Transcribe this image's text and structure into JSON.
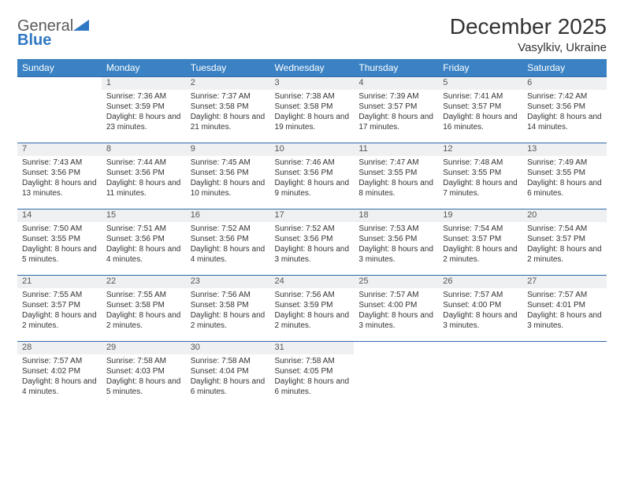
{
  "logo": {
    "line1": "General",
    "line2": "Blue",
    "triangle_color": "#2f78c4"
  },
  "header": {
    "month_title": "December 2025",
    "location": "Vasylkiv, Ukraine"
  },
  "style": {
    "header_bg": "#3b82c4",
    "header_text": "#ffffff",
    "daynum_bg": "#eef0f2",
    "border_color": "#2f6aa8",
    "text_color": "#333333",
    "page_bg": "#ffffff",
    "title_fontsize": 28,
    "location_fontsize": 15,
    "weekday_fontsize": 12,
    "cell_fontsize": 10
  },
  "weekdays": [
    "Sunday",
    "Monday",
    "Tuesday",
    "Wednesday",
    "Thursday",
    "Friday",
    "Saturday"
  ],
  "weeks": [
    [
      null,
      {
        "n": "1",
        "sr": "7:36 AM",
        "ss": "3:59 PM",
        "dl": "8 hours and 23 minutes."
      },
      {
        "n": "2",
        "sr": "7:37 AM",
        "ss": "3:58 PM",
        "dl": "8 hours and 21 minutes."
      },
      {
        "n": "3",
        "sr": "7:38 AM",
        "ss": "3:58 PM",
        "dl": "8 hours and 19 minutes."
      },
      {
        "n": "4",
        "sr": "7:39 AM",
        "ss": "3:57 PM",
        "dl": "8 hours and 17 minutes."
      },
      {
        "n": "5",
        "sr": "7:41 AM",
        "ss": "3:57 PM",
        "dl": "8 hours and 16 minutes."
      },
      {
        "n": "6",
        "sr": "7:42 AM",
        "ss": "3:56 PM",
        "dl": "8 hours and 14 minutes."
      }
    ],
    [
      {
        "n": "7",
        "sr": "7:43 AM",
        "ss": "3:56 PM",
        "dl": "8 hours and 13 minutes."
      },
      {
        "n": "8",
        "sr": "7:44 AM",
        "ss": "3:56 PM",
        "dl": "8 hours and 11 minutes."
      },
      {
        "n": "9",
        "sr": "7:45 AM",
        "ss": "3:56 PM",
        "dl": "8 hours and 10 minutes."
      },
      {
        "n": "10",
        "sr": "7:46 AM",
        "ss": "3:56 PM",
        "dl": "8 hours and 9 minutes."
      },
      {
        "n": "11",
        "sr": "7:47 AM",
        "ss": "3:55 PM",
        "dl": "8 hours and 8 minutes."
      },
      {
        "n": "12",
        "sr": "7:48 AM",
        "ss": "3:55 PM",
        "dl": "8 hours and 7 minutes."
      },
      {
        "n": "13",
        "sr": "7:49 AM",
        "ss": "3:55 PM",
        "dl": "8 hours and 6 minutes."
      }
    ],
    [
      {
        "n": "14",
        "sr": "7:50 AM",
        "ss": "3:55 PM",
        "dl": "8 hours and 5 minutes."
      },
      {
        "n": "15",
        "sr": "7:51 AM",
        "ss": "3:56 PM",
        "dl": "8 hours and 4 minutes."
      },
      {
        "n": "16",
        "sr": "7:52 AM",
        "ss": "3:56 PM",
        "dl": "8 hours and 4 minutes."
      },
      {
        "n": "17",
        "sr": "7:52 AM",
        "ss": "3:56 PM",
        "dl": "8 hours and 3 minutes."
      },
      {
        "n": "18",
        "sr": "7:53 AM",
        "ss": "3:56 PM",
        "dl": "8 hours and 3 minutes."
      },
      {
        "n": "19",
        "sr": "7:54 AM",
        "ss": "3:57 PM",
        "dl": "8 hours and 2 minutes."
      },
      {
        "n": "20",
        "sr": "7:54 AM",
        "ss": "3:57 PM",
        "dl": "8 hours and 2 minutes."
      }
    ],
    [
      {
        "n": "21",
        "sr": "7:55 AM",
        "ss": "3:57 PM",
        "dl": "8 hours and 2 minutes."
      },
      {
        "n": "22",
        "sr": "7:55 AM",
        "ss": "3:58 PM",
        "dl": "8 hours and 2 minutes."
      },
      {
        "n": "23",
        "sr": "7:56 AM",
        "ss": "3:58 PM",
        "dl": "8 hours and 2 minutes."
      },
      {
        "n": "24",
        "sr": "7:56 AM",
        "ss": "3:59 PM",
        "dl": "8 hours and 2 minutes."
      },
      {
        "n": "25",
        "sr": "7:57 AM",
        "ss": "4:00 PM",
        "dl": "8 hours and 3 minutes."
      },
      {
        "n": "26",
        "sr": "7:57 AM",
        "ss": "4:00 PM",
        "dl": "8 hours and 3 minutes."
      },
      {
        "n": "27",
        "sr": "7:57 AM",
        "ss": "4:01 PM",
        "dl": "8 hours and 3 minutes."
      }
    ],
    [
      {
        "n": "28",
        "sr": "7:57 AM",
        "ss": "4:02 PM",
        "dl": "8 hours and 4 minutes."
      },
      {
        "n": "29",
        "sr": "7:58 AM",
        "ss": "4:03 PM",
        "dl": "8 hours and 5 minutes."
      },
      {
        "n": "30",
        "sr": "7:58 AM",
        "ss": "4:04 PM",
        "dl": "8 hours and 6 minutes."
      },
      {
        "n": "31",
        "sr": "7:58 AM",
        "ss": "4:05 PM",
        "dl": "8 hours and 6 minutes."
      },
      null,
      null,
      null
    ]
  ],
  "labels": {
    "sunrise": "Sunrise:",
    "sunset": "Sunset:",
    "daylight": "Daylight:"
  }
}
